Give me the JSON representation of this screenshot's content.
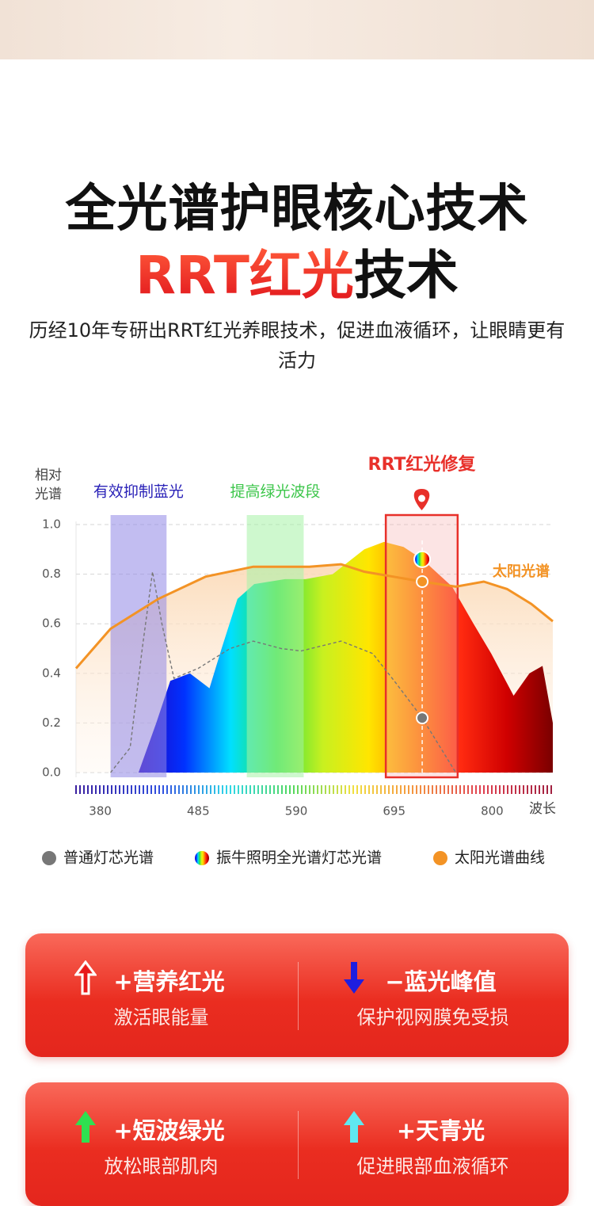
{
  "header": {
    "title": "全光谱护眼核心技术",
    "title2_highlight": "RRT红光",
    "title2_rest": "技术",
    "subtitle": "历经10年专研出RRT红光养眼技术，促进血液循环，让眼睛更有活力"
  },
  "chart_data": {
    "type": "line",
    "ylabel": "相对光谱",
    "xlabel": "波长",
    "xlim": [
      354,
      865
    ],
    "ylim": [
      0,
      1
    ],
    "xticks": [
      380,
      485,
      590,
      695,
      800
    ],
    "yticks": [
      {
        "value": 0,
        "label": "0.0"
      },
      0.2,
      0.4,
      0.6,
      0.8,
      {
        "value": 1,
        "label": "1.0"
      }
    ],
    "grid": true,
    "highlight_x": 725,
    "bands": [
      {
        "label": "有效抑制蓝光",
        "range": [
          391,
          451
        ],
        "color": "#2a22b8",
        "fill": "#8f86e6"
      },
      {
        "label": "提高绿光波段",
        "range": [
          537,
          598
        ],
        "color": "#3dc64b",
        "fill": "#a6f2a6"
      },
      {
        "label": "RRT红光修复",
        "range": [
          686,
          763
        ],
        "color": "#e8302a",
        "fill": "#f7b3b3"
      }
    ],
    "series": [
      {
        "name": "普通灯芯光谱",
        "color": "#777777",
        "style": "dashed",
        "x": [
          391,
          412,
          425,
          436,
          446,
          459,
          485,
          519,
          544,
          574,
          595,
          638,
          672,
          697,
          725,
          761
        ],
        "values": [
          0,
          0.1,
          0.5,
          0.81,
          0.6,
          0.38,
          0.42,
          0.5,
          0.53,
          0.5,
          0.49,
          0.53,
          0.48,
          0.36,
          0.22,
          0
        ]
      },
      {
        "name": "振牛照明全光谱灯芯光谱",
        "color": "#ff2a10",
        "style": "area",
        "gradient": [
          "#2400c0",
          "#0032ff",
          "#00e0ff",
          "#30e040",
          "#c8f020",
          "#ffe600",
          "#ff8a00",
          "#ff2a10",
          "#d00000",
          "#7a0000"
        ],
        "x": [
          421,
          440,
          455,
          476,
          497,
          510,
          527,
          545,
          578,
          600,
          629,
          663,
          684,
          705,
          725,
          757,
          780,
          799,
          823,
          840,
          854,
          865
        ],
        "values": [
          0,
          0.2,
          0.37,
          0.4,
          0.34,
          0.5,
          0.7,
          0.76,
          0.78,
          0.78,
          0.8,
          0.9,
          0.93,
          0.91,
          0.86,
          0.75,
          0.6,
          0.48,
          0.31,
          0.4,
          0.43,
          0.2
        ]
      },
      {
        "name": "太阳光谱曲线",
        "color": "#f39325",
        "style": "line-area",
        "label": "太阳光谱",
        "x": [
          354,
          391,
          442,
          493,
          544,
          604,
          638,
          663,
          725,
          761,
          791,
          816,
          842,
          865
        ],
        "values": [
          0.42,
          0.58,
          0.7,
          0.79,
          0.83,
          0.83,
          0.84,
          0.81,
          0.77,
          0.75,
          0.77,
          0.74,
          0.68,
          0.61
        ]
      }
    ]
  },
  "cards": [
    {
      "items": [
        {
          "title": "+营养红光",
          "subtitle": "激活眼能量"
        },
        {
          "title": "−蓝光峰值",
          "subtitle": "保护视网膜免受损"
        }
      ]
    },
    {
      "items": [
        {
          "title": "+短波绿光",
          "subtitle": "放松眼部肌肉"
        },
        {
          "title": "+天青光",
          "subtitle": "促进眼部血液循环"
        }
      ]
    }
  ]
}
